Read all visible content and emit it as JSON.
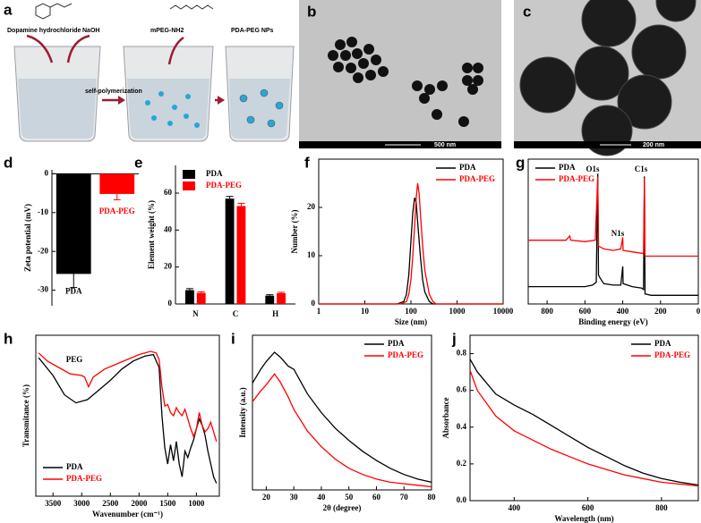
{
  "scheme": {
    "label": "a",
    "reagent1": "Dopamine hydrochloride",
    "reagent2": "NaOH",
    "reagent3": "mPEG-NH2",
    "product": "PDA-PEG NPs",
    "step": "self-polymerization"
  },
  "images": [
    {
      "label": "b",
      "scale_bar": "500 nm"
    },
    {
      "label": "c",
      "scale_bar": "200 nm"
    }
  ],
  "chart_data": [
    {
      "type": "bar",
      "label": "d",
      "ylabel": "Zeta potential (mV)",
      "categories": [
        "PDA",
        "PDA-PEG"
      ],
      "values": [
        -25.8,
        -5.2
      ],
      "errors": [
        3.5,
        1.5
      ],
      "colors": [
        "#000000",
        "#ff0000"
      ],
      "ylim": [
        -34,
        1
      ],
      "yticks": [
        0,
        -10,
        -20,
        -30
      ]
    },
    {
      "type": "grouped_bar",
      "label": "e",
      "ylabel": "Element weight (%)",
      "categories": [
        "N",
        "C",
        "H"
      ],
      "legend": "upper left",
      "series": [
        {
          "name": "PDA",
          "color": "#000000",
          "values": [
            7.5,
            57,
            4.5
          ],
          "errors": [
            0.8,
            1.2,
            0.5
          ]
        },
        {
          "name": "PDA-PEG",
          "color": "#ff0000",
          "values": [
            6,
            53,
            5.8
          ],
          "errors": [
            0.6,
            1.5,
            0.5
          ]
        }
      ],
      "ylim": [
        0,
        75
      ],
      "yticks": [
        0,
        20,
        40,
        60
      ]
    },
    {
      "type": "line",
      "label": "f",
      "xlabel": "Size (nm)",
      "ylabel": "Number (%)",
      "xscale": "log",
      "legend": "upper right",
      "xlim": [
        1,
        10000
      ],
      "xticks": [
        1,
        10,
        100,
        1000,
        10000
      ],
      "ylim": [
        0,
        30
      ],
      "yticks": [
        0,
        10,
        20
      ],
      "series": [
        {
          "name": "PDA",
          "color": "#000000",
          "x": [
            1,
            50,
            70,
            80,
            90,
            100,
            110,
            120,
            130,
            140,
            160,
            180,
            200,
            250,
            300,
            10000
          ],
          "values": [
            0,
            0,
            0.5,
            2,
            6,
            13,
            19,
            22,
            21,
            17,
            10,
            5,
            2.5,
            0.5,
            0,
            0
          ]
        },
        {
          "name": "PDA-PEG",
          "color": "#ff0000",
          "x": [
            1,
            60,
            80,
            90,
            100,
            110,
            120,
            130,
            140,
            150,
            160,
            180,
            200,
            250,
            300,
            350,
            10000
          ],
          "values": [
            0,
            0,
            0.5,
            2,
            5,
            10,
            16,
            22,
            25,
            23,
            19,
            12,
            7,
            2,
            0.5,
            0,
            0
          ]
        }
      ]
    },
    {
      "type": "line",
      "label": "g",
      "xlabel": "Binding energy (eV)",
      "legend": "upper left",
      "annotations": [
        "O1s",
        "N1s",
        "C1s"
      ],
      "xlim": [
        900,
        0
      ],
      "xticks": [
        800,
        600,
        400,
        200,
        0
      ],
      "ylim": [
        0,
        100
      ],
      "series": [
        {
          "name": "PDA",
          "color": "#000000",
          "x": [
            900,
            700,
            600,
            560,
            540,
            532,
            528,
            520,
            500,
            450,
            410,
            400,
            398,
            350,
            300,
            290,
            285,
            282,
            250,
            100,
            0
          ],
          "values": [
            12,
            12,
            12,
            13,
            15,
            90,
            20,
            18,
            14,
            13,
            13,
            26,
            14,
            12,
            11,
            10,
            88,
            7,
            6,
            6,
            6
          ]
        },
        {
          "name": "PDA-PEG",
          "color": "#ff0000",
          "x": [
            900,
            700,
            680,
            675,
            600,
            545,
            532,
            528,
            500,
            450,
            410,
            400,
            398,
            350,
            300,
            290,
            285,
            282,
            0
          ],
          "values": [
            44,
            44,
            47,
            44,
            43,
            44,
            88,
            40,
            38,
            37,
            38,
            46,
            37,
            36,
            35,
            35,
            87,
            33,
            33
          ]
        }
      ]
    },
    {
      "type": "line",
      "label": "h",
      "xlabel": "Wavenumber (cm⁻¹)",
      "ylabel": "Transmitance (%)",
      "legend": "lower left",
      "annotations": [
        "PEG"
      ],
      "xlim": [
        3800,
        600
      ],
      "xticks": [
        3500,
        3000,
        2500,
        2000,
        1500,
        1000
      ],
      "ylim": [
        0,
        100
      ],
      "series": [
        {
          "name": "PDA",
          "color": "#000000",
          "x": [
            3750,
            3500,
            3300,
            3100,
            2900,
            2700,
            2500,
            2300,
            2100,
            1900,
            1750,
            1650,
            1600,
            1550,
            1500,
            1450,
            1400,
            1350,
            1300,
            1250,
            1200,
            1150,
            1100,
            1050,
            1000,
            950,
            900,
            850,
            800,
            750,
            700,
            650
          ],
          "values": [
            86,
            75,
            63,
            58,
            60,
            66,
            72,
            79,
            84,
            87,
            88,
            80,
            50,
            30,
            20,
            32,
            22,
            34,
            20,
            12,
            28,
            24,
            30,
            35,
            42,
            48,
            44,
            38,
            28,
            20,
            12,
            8
          ]
        },
        {
          "name": "PDA-PEG",
          "color": "#ff0000",
          "x": [
            3750,
            3600,
            3400,
            3200,
            3000,
            2950,
            2880,
            2800,
            2600,
            2400,
            2200,
            2000,
            1800,
            1700,
            1650,
            1600,
            1550,
            1500,
            1450,
            1400,
            1350,
            1300,
            1250,
            1200,
            1100,
            1050,
            1000,
            950,
            900,
            850,
            800,
            750,
            700,
            650
          ],
          "values": [
            89,
            84,
            80,
            76,
            75,
            74,
            68,
            74,
            79,
            82,
            85,
            88,
            90,
            89,
            85,
            68,
            56,
            57,
            52,
            50,
            55,
            52,
            50,
            54,
            42,
            37,
            42,
            52,
            44,
            40,
            42,
            46,
            40,
            34
          ]
        }
      ]
    },
    {
      "type": "line",
      "label": "i",
      "xlabel": "2θ (degree)",
      "ylabel": "Intensity (a.u.)",
      "legend": "upper right",
      "xlim": [
        15,
        80
      ],
      "xticks": [
        20,
        30,
        40,
        50,
        60,
        70,
        80
      ],
      "ylim": [
        0,
        100
      ],
      "series": [
        {
          "name": "PDA",
          "color": "#000000",
          "x": [
            15,
            18,
            20,
            23,
            25,
            28,
            30,
            35,
            40,
            45,
            50,
            55,
            60,
            65,
            70,
            75,
            80
          ],
          "values": [
            69,
            78,
            83,
            89,
            86,
            80,
            78,
            62,
            50,
            40,
            32,
            25,
            19,
            14,
            10,
            7,
            5
          ]
        },
        {
          "name": "PDA-PEG",
          "color": "#ff0000",
          "x": [
            15,
            18,
            20,
            23,
            25,
            28,
            30,
            35,
            40,
            45,
            50,
            55,
            60,
            65,
            70,
            75,
            80
          ],
          "values": [
            57,
            64,
            68,
            75,
            70,
            60,
            52,
            38,
            28,
            20,
            14,
            10,
            7,
            5,
            4,
            3,
            2
          ]
        }
      ]
    },
    {
      "type": "line",
      "label": "j",
      "xlabel": "Wavelength (nm)",
      "ylabel": "Absorbance",
      "legend": "upper right",
      "xlim": [
        280,
        900
      ],
      "xticks": [
        400,
        600,
        800
      ],
      "ylim": [
        0,
        0.9
      ],
      "yticks": [
        {
          "value": 0,
          "label": "0.0"
        },
        0.2,
        0.4,
        0.6,
        0.8
      ],
      "series": [
        {
          "name": "PDA",
          "color": "#000000",
          "x": [
            280,
            300,
            350,
            400,
            450,
            500,
            550,
            600,
            650,
            700,
            750,
            800,
            850,
            900
          ],
          "values": [
            0.77,
            0.7,
            0.58,
            0.52,
            0.47,
            0.41,
            0.35,
            0.29,
            0.24,
            0.19,
            0.15,
            0.12,
            0.1,
            0.085
          ]
        },
        {
          "name": "PDA-PEG",
          "color": "#ff0000",
          "x": [
            280,
            300,
            350,
            400,
            450,
            500,
            550,
            600,
            650,
            700,
            750,
            800,
            850,
            900
          ],
          "values": [
            0.71,
            0.6,
            0.46,
            0.38,
            0.33,
            0.28,
            0.24,
            0.2,
            0.17,
            0.14,
            0.12,
            0.1,
            0.09,
            0.08
          ]
        }
      ]
    }
  ]
}
